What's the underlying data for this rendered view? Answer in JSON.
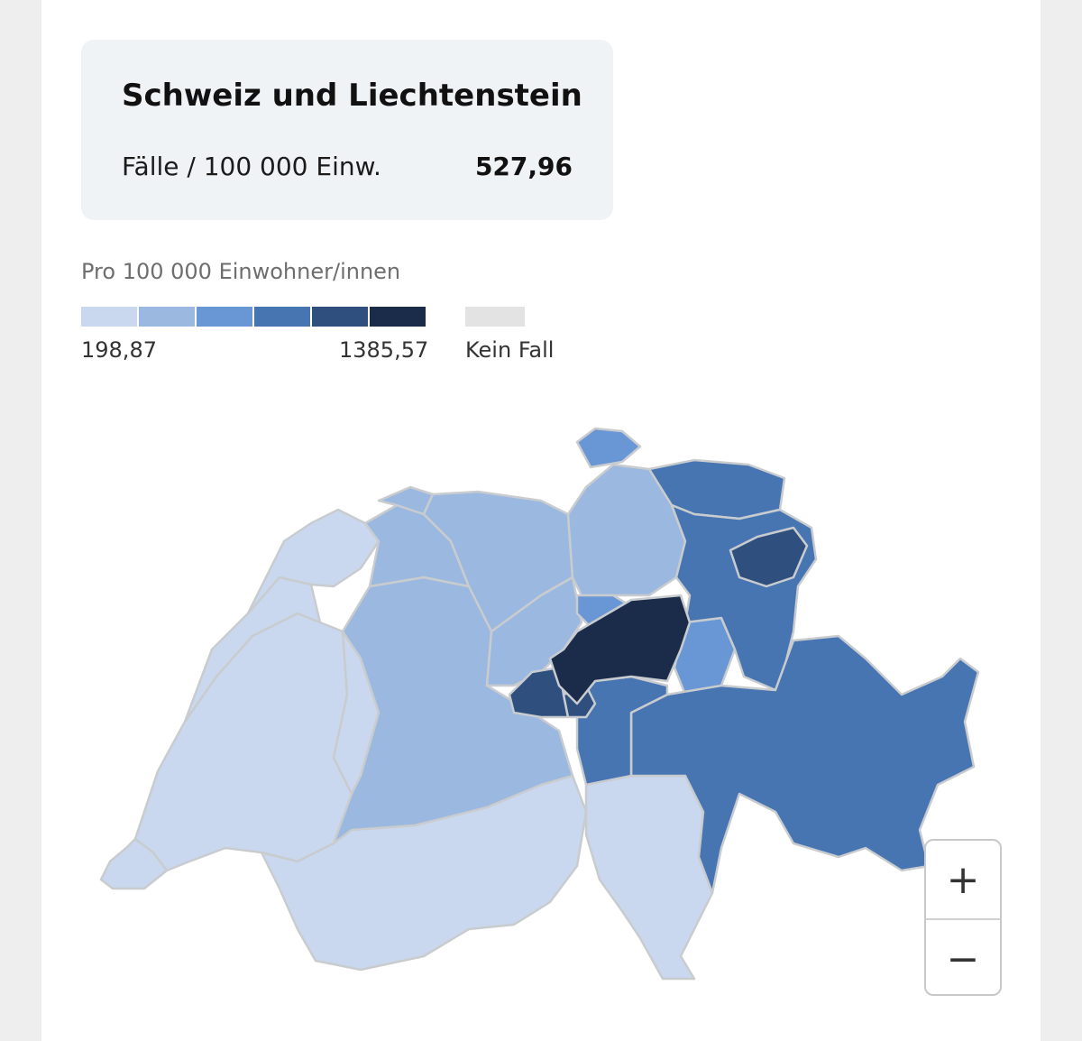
{
  "summary": {
    "title": "Schweiz und Liechtenstein",
    "metric_label": "Fälle / 100 000 Einw.",
    "metric_value": "527,96"
  },
  "legend": {
    "title": "Pro 100 000 Einwohner/innen",
    "min_label": "198,87",
    "max_label": "1385,57",
    "no_case_label": "Kein Fall",
    "scale_colors": [
      "#c9d8ee",
      "#9bb8e0",
      "#6996d4",
      "#4775b2",
      "#2f4f7f",
      "#1b2c4b"
    ],
    "no_case_color": "#e3e3e3"
  },
  "map": {
    "regions": [
      {
        "name": "Genf",
        "class": 1
      },
      {
        "name": "Waadt",
        "class": 1
      },
      {
        "name": "Neuenburg",
        "class": 1
      },
      {
        "name": "Jura",
        "class": 1
      },
      {
        "name": "Freiburg",
        "class": 1
      },
      {
        "name": "Wallis",
        "class": 1
      },
      {
        "name": "Tessin",
        "class": 1
      },
      {
        "name": "Bern",
        "class": 2
      },
      {
        "name": "Solothurn",
        "class": 2
      },
      {
        "name": "Basel",
        "class": 2
      },
      {
        "name": "Aargau",
        "class": 2
      },
      {
        "name": "Luzern",
        "class": 2
      },
      {
        "name": "Zürich",
        "class": 2
      },
      {
        "name": "Schaffhausen",
        "class": 3
      },
      {
        "name": "Zug",
        "class": 3
      },
      {
        "name": "Glarus",
        "class": 3
      },
      {
        "name": "Thurgau",
        "class": 4
      },
      {
        "name": "St. Gallen",
        "class": 4
      },
      {
        "name": "Graubünden",
        "class": 4
      },
      {
        "name": "Uri",
        "class": 4
      },
      {
        "name": "Appenzell",
        "class": 5
      },
      {
        "name": "Obwalden",
        "class": 5
      },
      {
        "name": "Nidwalden",
        "class": 5
      },
      {
        "name": "Schwyz",
        "class": 6
      }
    ]
  },
  "zoom": {
    "in_label": "+",
    "out_label": "−"
  }
}
